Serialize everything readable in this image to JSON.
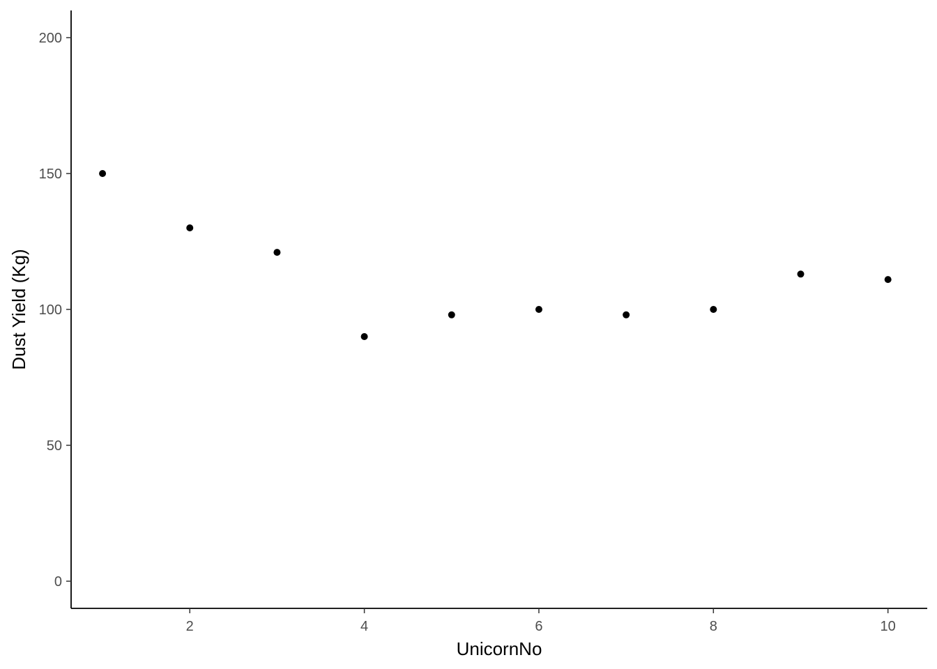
{
  "chart_data": {
    "type": "scatter",
    "title": "",
    "xlabel": "UnicornNo",
    "ylabel": "Dust Yield (Kg)",
    "x": [
      1,
      2,
      3,
      4,
      5,
      6,
      7,
      8,
      9,
      10
    ],
    "y": [
      150,
      130,
      121,
      90,
      98,
      100,
      98,
      100,
      113,
      111
    ],
    "xlim": [
      0.64,
      10.45
    ],
    "ylim": [
      -10,
      210
    ],
    "x_ticks": [
      2,
      4,
      6,
      8,
      10
    ],
    "y_ticks": [
      0,
      50,
      100,
      150,
      200
    ],
    "x_tick_labels": [
      "2",
      "4",
      "6",
      "8",
      "10"
    ],
    "y_tick_labels": [
      "0",
      "50",
      "100",
      "150",
      "200"
    ],
    "grid": false,
    "legend": "none",
    "point_color": "#000000"
  }
}
